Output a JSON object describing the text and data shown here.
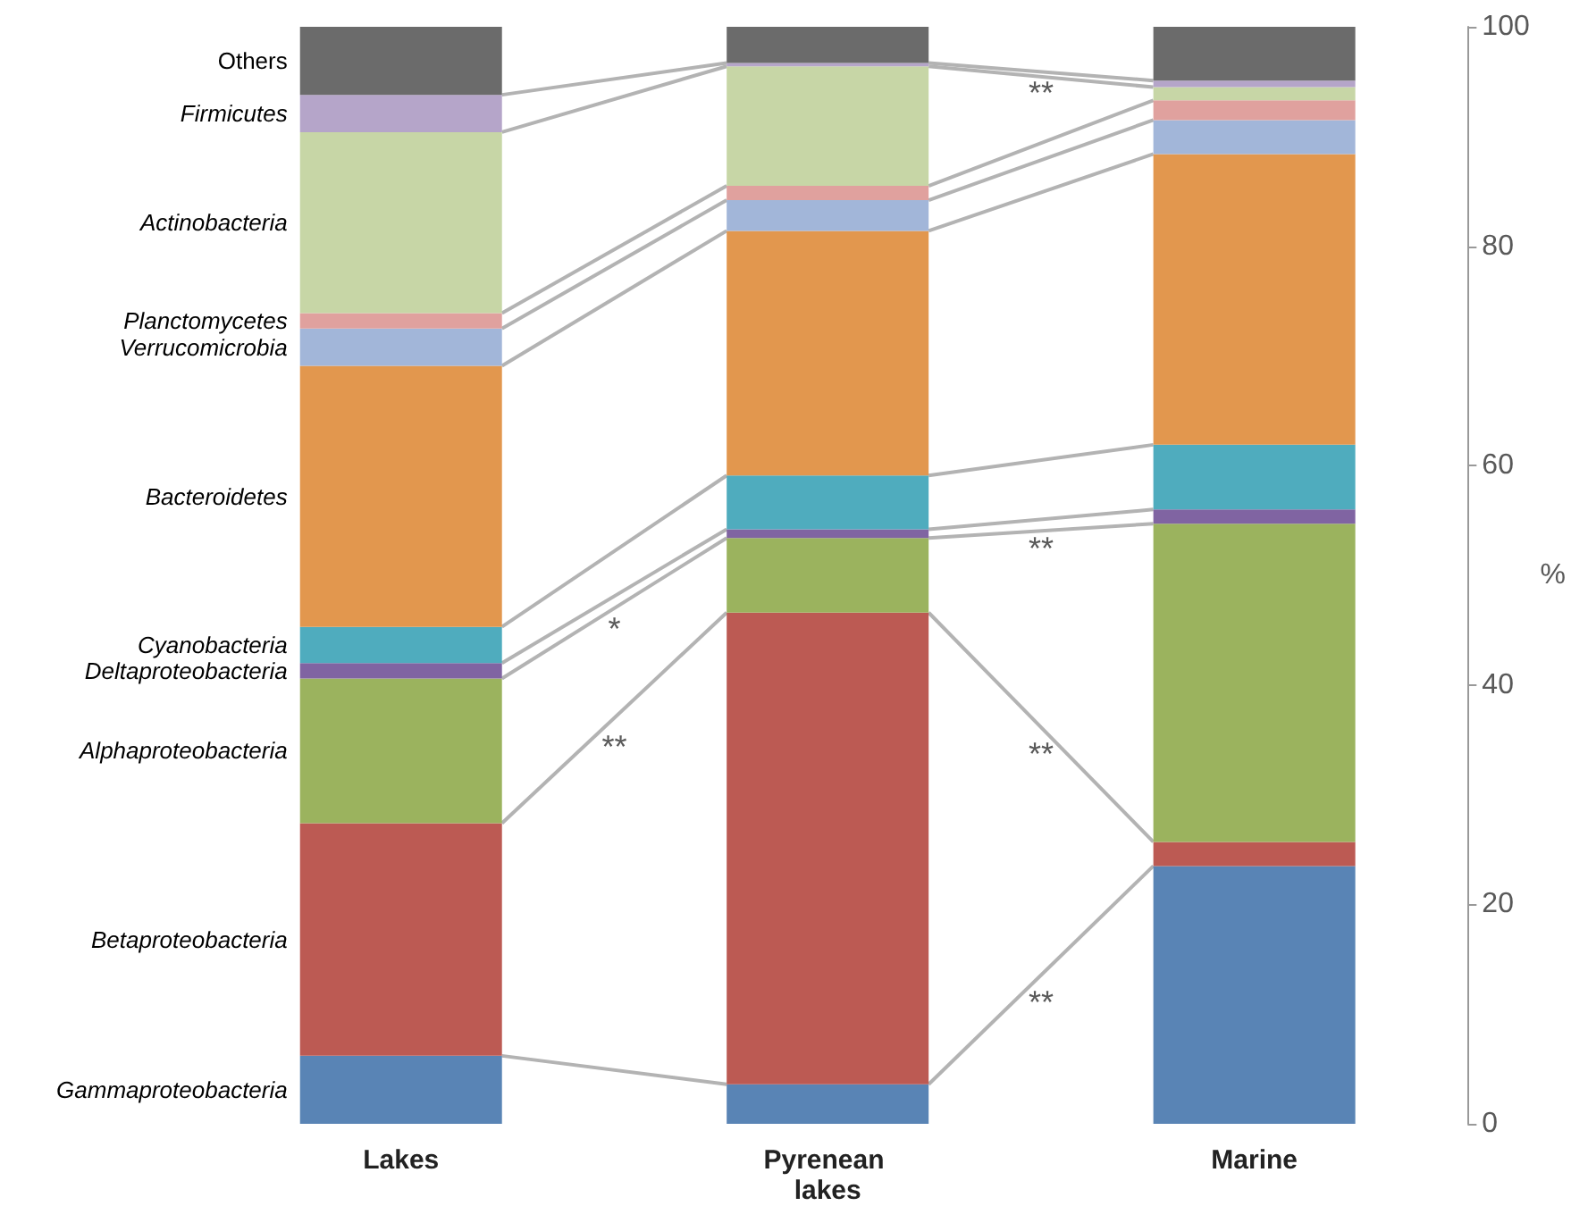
{
  "chart_data": {
    "type": "bar",
    "stacked": true,
    "ylabel": "%",
    "categories": [
      "Lakes",
      "Pyrenean lakes",
      "Marine"
    ],
    "ylim": [
      0,
      100
    ],
    "yticks": [
      0,
      20,
      40,
      60,
      80,
      100
    ],
    "series": [
      {
        "name": "Gammaproteobacteria",
        "color": "#5984b5",
        "values": [
          6.2,
          3.6,
          23.5
        ]
      },
      {
        "name": "Betaproteobacteria",
        "color": "#bc5a53",
        "values": [
          21.2,
          43.0,
          2.2
        ]
      },
      {
        "name": "Alphaproteobacteria",
        "color": "#9bb35e",
        "values": [
          13.2,
          6.8,
          29.0
        ]
      },
      {
        "name": "Deltaproteobacteria",
        "color": "#8064a2",
        "values": [
          1.4,
          0.8,
          1.3
        ]
      },
      {
        "name": "Cyanobacteria",
        "color": "#4facbe",
        "values": [
          3.3,
          4.9,
          5.9
        ]
      },
      {
        "name": "Bacteroidetes",
        "color": "#e2974e",
        "values": [
          23.8,
          22.3,
          26.5
        ]
      },
      {
        "name": "Verrucomicrobia",
        "color": "#a2b6d9",
        "values": [
          3.4,
          2.8,
          3.1
        ]
      },
      {
        "name": "Planctomycetes",
        "color": "#e0a19e",
        "values": [
          1.4,
          1.3,
          1.8
        ]
      },
      {
        "name": "Actinobacteria",
        "color": "#c7d6a6",
        "values": [
          16.5,
          10.9,
          1.2
        ]
      },
      {
        "name": "Firmicutes",
        "color": "#b5a5c9",
        "values": [
          3.4,
          0.3,
          0.6
        ]
      },
      {
        "name": "Others",
        "color": "#6b6b6b",
        "values": [
          6.2,
          3.3,
          4.9
        ]
      }
    ],
    "annotations": [
      "*",
      "**",
      "**",
      "**",
      "**",
      "**"
    ]
  }
}
